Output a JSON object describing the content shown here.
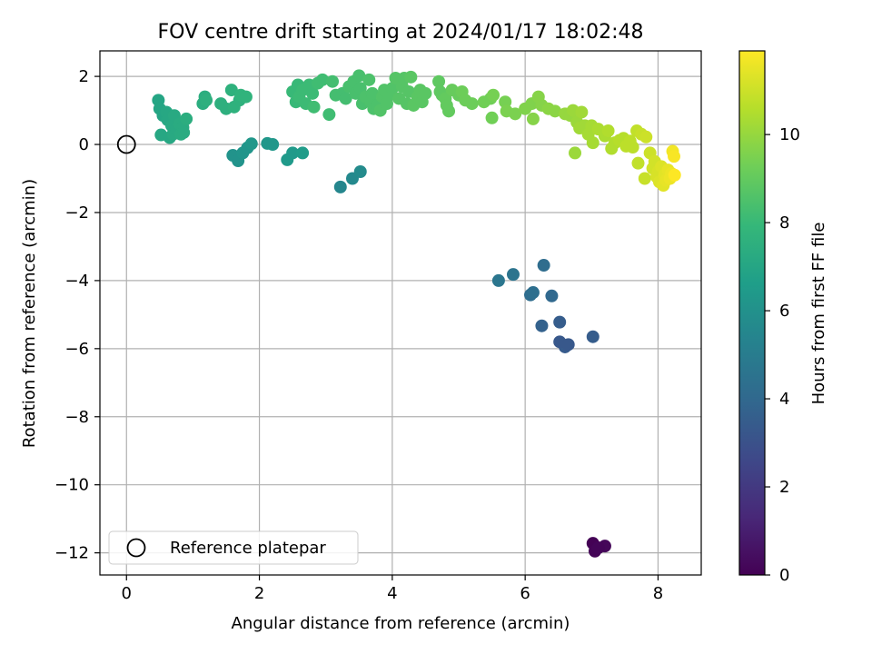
{
  "chart_data": {
    "type": "scatter",
    "title": "FOV centre drift starting at 2024/01/17 18:02:48",
    "xlabel": "Angular distance from reference (arcmin)",
    "ylabel": "Rotation from reference (arcmin)",
    "xlim": [
      -0.4,
      8.65
    ],
    "ylim": [
      -12.65,
      2.75
    ],
    "xticks": [
      0,
      2,
      4,
      6,
      8
    ],
    "xtick_labels": [
      "0",
      "2",
      "4",
      "6",
      "8"
    ],
    "yticks": [
      2,
      0,
      -2,
      -4,
      -6,
      -8,
      -10,
      -12
    ],
    "ytick_labels": [
      "2",
      "0",
      "−2",
      "−4",
      "−6",
      "−8",
      "−10",
      "−12"
    ],
    "grid": true,
    "legend": {
      "location": "lower-left",
      "entries": [
        "Reference platepar"
      ]
    },
    "reference_point": {
      "x": 0,
      "y": 0
    },
    "colorbar": {
      "label": "Hours from first FF file",
      "range": [
        0,
        11.9
      ],
      "ticks": [
        0,
        2,
        4,
        6,
        8,
        10
      ],
      "tick_labels": [
        "0",
        "2",
        "4",
        "6",
        "8",
        "10"
      ],
      "colormap": "viridis",
      "colormap_stops": [
        "#440154",
        "#482878",
        "#3e4989",
        "#31688e",
        "#26828e",
        "#1f9e89",
        "#35b779",
        "#6ece58",
        "#b5de2b",
        "#fde725"
      ]
    },
    "points": [
      [
        7.02,
        -11.72,
        0.05
      ],
      [
        7.05,
        -11.95,
        0.1
      ],
      [
        7.2,
        -11.8,
        0.2
      ],
      [
        7.1,
        -11.85,
        0.15
      ],
      [
        7.02,
        -5.65,
        3.5
      ],
      [
        6.6,
        -5.95,
        3.4
      ],
      [
        6.52,
        -5.8,
        3.3
      ],
      [
        6.65,
        -5.88,
        3.3
      ],
      [
        6.52,
        -5.22,
        3.5
      ],
      [
        6.25,
        -5.33,
        3.7
      ],
      [
        6.4,
        -4.45,
        4.0
      ],
      [
        6.08,
        -4.42,
        4.2
      ],
      [
        6.12,
        -4.35,
        4.3
      ],
      [
        6.28,
        -3.55,
        4.2
      ],
      [
        5.82,
        -3.82,
        4.6
      ],
      [
        5.6,
        -4.0,
        4.7
      ],
      [
        3.22,
        -1.25,
        5.5
      ],
      [
        3.4,
        -1.0,
        5.6
      ],
      [
        3.52,
        -0.8,
        5.7
      ],
      [
        1.6,
        -0.32,
        6.1
      ],
      [
        1.68,
        -0.48,
        6.1
      ],
      [
        1.75,
        -0.25,
        6.2
      ],
      [
        1.82,
        -0.1,
        6.2
      ],
      [
        1.88,
        0.02,
        6.3
      ],
      [
        2.12,
        0.03,
        6.3
      ],
      [
        2.2,
        0.0,
        6.3
      ],
      [
        2.42,
        -0.45,
        6.4
      ],
      [
        2.5,
        -0.25,
        6.4
      ],
      [
        2.65,
        -0.25,
        6.5
      ],
      [
        0.48,
        1.3,
        7.0
      ],
      [
        0.5,
        1.05,
        7.0
      ],
      [
        0.55,
        0.85,
        7.0
      ],
      [
        0.52,
        0.28,
        7.1
      ],
      [
        0.6,
        0.95,
        7.1
      ],
      [
        0.62,
        0.72,
        7.1
      ],
      [
        0.65,
        0.2,
        7.1
      ],
      [
        0.68,
        0.55,
        7.2
      ],
      [
        0.7,
        0.3,
        7.2
      ],
      [
        0.72,
        0.85,
        7.2
      ],
      [
        0.75,
        0.45,
        7.2
      ],
      [
        0.8,
        0.6,
        7.3
      ],
      [
        0.82,
        0.3,
        7.3
      ],
      [
        0.85,
        0.5,
        7.3
      ],
      [
        0.86,
        0.35,
        7.3
      ],
      [
        0.9,
        0.75,
        7.4
      ],
      [
        1.15,
        1.2,
        7.4
      ],
      [
        1.18,
        1.4,
        7.4
      ],
      [
        1.2,
        1.3,
        7.5
      ],
      [
        1.42,
        1.2,
        7.5
      ],
      [
        1.5,
        1.05,
        7.5
      ],
      [
        1.58,
        1.6,
        7.6
      ],
      [
        1.62,
        1.1,
        7.6
      ],
      [
        1.7,
        1.3,
        7.6
      ],
      [
        1.72,
        1.45,
        7.7
      ],
      [
        1.8,
        1.4,
        7.7
      ],
      [
        2.5,
        1.55,
        8.0
      ],
      [
        2.55,
        1.25,
        8.0
      ],
      [
        2.58,
        1.75,
        8.0
      ],
      [
        2.6,
        1.4,
        8.1
      ],
      [
        2.65,
        1.6,
        8.1
      ],
      [
        2.7,
        1.2,
        8.1
      ],
      [
        2.75,
        1.75,
        8.1
      ],
      [
        2.8,
        1.5,
        8.1
      ],
      [
        2.82,
        1.1,
        8.2
      ],
      [
        2.88,
        1.8,
        8.2
      ],
      [
        2.95,
        1.9,
        8.2
      ],
      [
        3.05,
        0.88,
        8.2
      ],
      [
        3.1,
        1.85,
        8.3
      ],
      [
        3.15,
        1.45,
        8.3
      ],
      [
        3.25,
        1.5,
        8.3
      ],
      [
        3.3,
        1.35,
        8.3
      ],
      [
        3.35,
        1.7,
        8.4
      ],
      [
        3.42,
        1.85,
        8.4
      ],
      [
        3.45,
        1.5,
        8.4
      ],
      [
        3.5,
        2.02,
        8.4
      ],
      [
        3.52,
        1.65,
        8.4
      ],
      [
        3.55,
        1.2,
        8.4
      ],
      [
        3.6,
        1.4,
        8.5
      ],
      [
        3.65,
        1.9,
        8.5
      ],
      [
        3.68,
        1.25,
        8.5
      ],
      [
        3.7,
        1.5,
        8.5
      ],
      [
        3.72,
        1.05,
        8.5
      ],
      [
        3.78,
        1.15,
        8.5
      ],
      [
        3.82,
        1.0,
        8.6
      ],
      [
        3.85,
        1.4,
        8.6
      ],
      [
        3.88,
        1.6,
        8.6
      ],
      [
        3.92,
        1.2,
        8.6
      ],
      [
        3.95,
        1.45,
        8.6
      ],
      [
        4.0,
        1.65,
        8.6
      ],
      [
        4.05,
        1.95,
        8.7
      ],
      [
        4.1,
        1.35,
        8.7
      ],
      [
        4.15,
        1.7,
        8.7
      ],
      [
        4.18,
        1.95,
        8.7
      ],
      [
        4.22,
        1.2,
        8.7
      ],
      [
        4.25,
        1.55,
        8.7
      ],
      [
        4.28,
        1.98,
        8.8
      ],
      [
        4.32,
        1.15,
        8.8
      ],
      [
        4.38,
        1.4,
        8.8
      ],
      [
        4.42,
        1.6,
        8.8
      ],
      [
        4.45,
        1.25,
        8.8
      ],
      [
        4.5,
        1.5,
        8.8
      ],
      [
        4.7,
        1.85,
        8.9
      ],
      [
        4.72,
        1.55,
        8.9
      ],
      [
        4.75,
        1.45,
        8.9
      ],
      [
        4.8,
        1.35,
        9.0
      ],
      [
        4.82,
        1.15,
        9.0
      ],
      [
        4.85,
        0.98,
        9.0
      ],
      [
        4.9,
        1.6,
        9.1
      ],
      [
        5.0,
        1.45,
        9.1
      ],
      [
        5.05,
        1.55,
        9.2
      ],
      [
        5.1,
        1.3,
        9.2
      ],
      [
        5.2,
        1.2,
        9.2
      ],
      [
        5.38,
        1.25,
        9.3
      ],
      [
        5.48,
        1.35,
        9.3
      ],
      [
        5.5,
        0.78,
        9.3
      ],
      [
        5.52,
        1.45,
        9.4
      ],
      [
        5.7,
        1.25,
        9.4
      ],
      [
        5.72,
        0.98,
        9.5
      ],
      [
        5.85,
        0.9,
        9.5
      ],
      [
        6.0,
        1.05,
        9.6
      ],
      [
        6.1,
        1.2,
        9.6
      ],
      [
        6.12,
        0.75,
        9.7
      ],
      [
        6.2,
        1.4,
        9.7
      ],
      [
        6.25,
        1.15,
        9.7
      ],
      [
        6.35,
        1.05,
        9.8
      ],
      [
        6.45,
        0.98,
        9.8
      ],
      [
        6.6,
        0.9,
        10.0
      ],
      [
        6.68,
        0.85,
        10.0
      ],
      [
        6.72,
        1.0,
        10.1
      ],
      [
        6.75,
        -0.25,
        10.1
      ],
      [
        6.78,
        0.65,
        10.1
      ],
      [
        6.82,
        0.48,
        10.2
      ],
      [
        6.85,
        0.95,
        10.2
      ],
      [
        6.9,
        0.55,
        10.2
      ],
      [
        6.95,
        0.3,
        10.3
      ],
      [
        7.0,
        0.55,
        10.3
      ],
      [
        7.02,
        0.05,
        10.3
      ],
      [
        7.1,
        0.45,
        10.4
      ],
      [
        7.2,
        0.25,
        10.4
      ],
      [
        7.25,
        0.4,
        10.5
      ],
      [
        7.3,
        -0.12,
        10.5
      ],
      [
        7.35,
        0.05,
        10.5
      ],
      [
        7.42,
        0.12,
        10.6
      ],
      [
        7.48,
        0.18,
        10.6
      ],
      [
        7.52,
        -0.05,
        10.7
      ],
      [
        7.58,
        0.1,
        10.7
      ],
      [
        7.62,
        -0.08,
        10.7
      ],
      [
        7.68,
        0.4,
        10.8
      ],
      [
        7.7,
        -0.55,
        10.8
      ],
      [
        7.75,
        0.3,
        10.9
      ],
      [
        7.8,
        -1.0,
        10.9
      ],
      [
        7.82,
        0.22,
        11.0
      ],
      [
        7.88,
        -0.25,
        11.0
      ],
      [
        7.92,
        -0.7,
        11.1
      ],
      [
        7.95,
        -0.5,
        11.1
      ],
      [
        7.98,
        -0.95,
        11.2
      ],
      [
        8.0,
        -0.8,
        11.2
      ],
      [
        8.02,
        -1.1,
        11.3
      ],
      [
        8.05,
        -0.65,
        11.3
      ],
      [
        8.08,
        -1.2,
        11.4
      ],
      [
        8.1,
        -0.9,
        11.4
      ],
      [
        8.12,
        -1.05,
        11.5
      ],
      [
        8.15,
        -0.75,
        11.5
      ],
      [
        8.18,
        -1.0,
        11.6
      ],
      [
        8.2,
        -0.85,
        11.6
      ],
      [
        8.22,
        -0.2,
        11.7
      ],
      [
        8.24,
        -0.35,
        11.8
      ],
      [
        8.25,
        -0.9,
        11.9
      ]
    ]
  }
}
